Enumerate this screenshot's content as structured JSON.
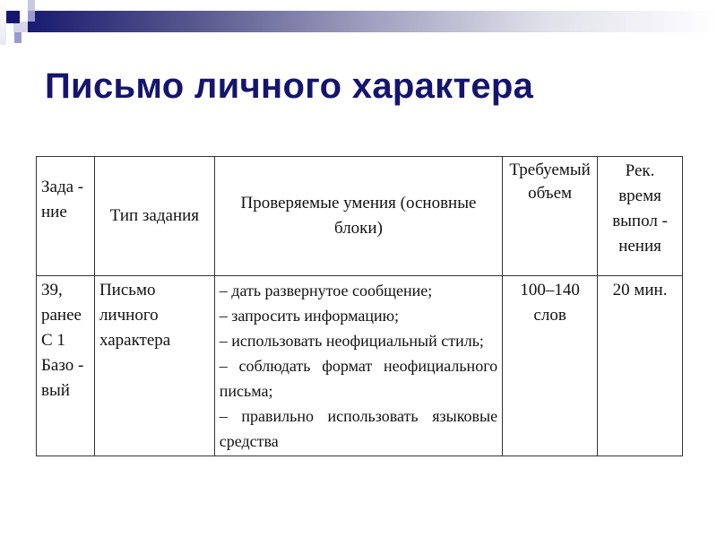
{
  "title": "Письмо личного характера",
  "table": {
    "headers": [
      "Зада - ние",
      "Тип задания",
      "Проверяемые умения (основные блоки)",
      "Требуемый объем",
      "Рек. время выпол - нения"
    ],
    "row": {
      "task": [
        "39,",
        "ранее",
        "С 1",
        "Базо -",
        "вый"
      ],
      "type": [
        "Письмо",
        "личного",
        "характера"
      ],
      "skills": [
        "– дать развернутое сообщение;",
        "– запросить информацию;",
        "– использовать неофициальный стиль;",
        "– соблюдать формат неофициального письма;",
        "– правильно использовать языковые средства"
      ],
      "volume": [
        "100–140",
        "слов"
      ],
      "time": "20 мин."
    }
  },
  "colors": {
    "title": "#15156e",
    "accent": "#1a1a70"
  }
}
